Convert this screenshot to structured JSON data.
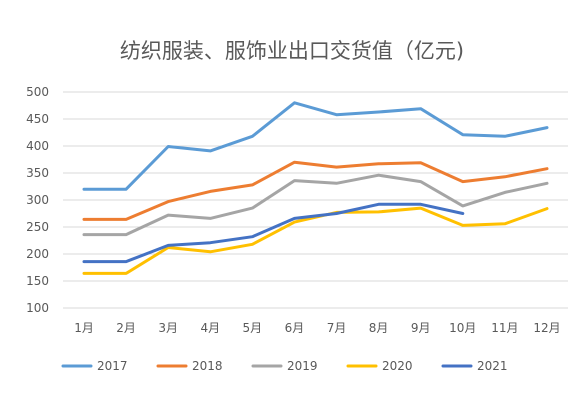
{
  "chart_data": {
    "type": "line",
    "title": "纺织服装、服饰业出口交货值（亿元)",
    "xlabel": "",
    "ylabel": "",
    "categories": [
      "1月",
      "2月",
      "3月",
      "4月",
      "5月",
      "6月",
      "7月",
      "8月",
      "9月",
      "10月",
      "11月",
      "12月"
    ],
    "ylim": [
      100,
      500
    ],
    "yticks": [
      "100",
      "150",
      "200",
      "250",
      "300",
      "350",
      "400",
      "450",
      "500"
    ],
    "grid": true,
    "legend_position": "bottom",
    "series": [
      {
        "name": "2017",
        "color": "#5b9bd5",
        "values": [
          320,
          320,
          399,
          391,
          418,
          480,
          458,
          463,
          469,
          421,
          418,
          434
        ]
      },
      {
        "name": "2018",
        "color": "#ed7d31",
        "values": [
          264,
          264,
          297,
          316,
          328,
          370,
          361,
          367,
          369,
          334,
          343,
          358
        ]
      },
      {
        "name": "2019",
        "color": "#a5a5a5",
        "values": [
          236,
          236,
          272,
          266,
          285,
          336,
          331,
          346,
          334,
          289,
          314,
          331
        ]
      },
      {
        "name": "2020",
        "color": "#ffc000",
        "values": [
          164,
          164,
          212,
          204,
          218,
          259,
          277,
          278,
          285,
          253,
          256,
          284
        ]
      },
      {
        "name": "2021",
        "color": "#4472c4",
        "values": [
          186,
          186,
          216,
          221,
          232,
          266,
          275,
          292,
          292,
          275,
          null,
          null
        ]
      }
    ]
  }
}
